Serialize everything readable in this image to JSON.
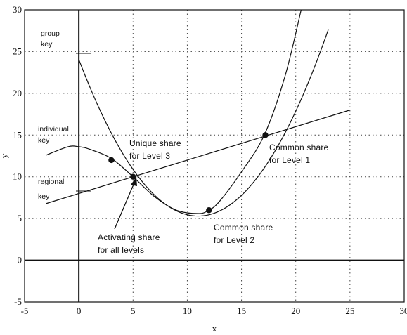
{
  "chart_data": {
    "type": "line",
    "title": "",
    "xlabel": "x",
    "ylabel": "y",
    "xlim": [
      -5,
      30
    ],
    "ylim": [
      -5,
      30
    ],
    "xticks": [
      -5,
      0,
      5,
      10,
      15,
      20,
      25,
      30
    ],
    "yticks": [
      -5,
      0,
      5,
      10,
      15,
      20,
      25,
      30
    ],
    "grid": true,
    "series": [
      {
        "kind": "line",
        "slope": 0.4,
        "intercept": 8
      },
      {
        "kind": "parabola",
        "a": 0.155,
        "h": 11,
        "k": 5.3
      },
      {
        "kind": "cubic",
        "x": [
          -3,
          -1,
          0,
          1,
          3,
          5,
          7,
          9,
          11,
          12,
          13,
          15,
          17.1,
          19,
          20.5
        ],
        "y": [
          12.6,
          13.6,
          13.6,
          13.3,
          12.2,
          10,
          7.6,
          6.0,
          5.6,
          6.0,
          7.1,
          10.6,
          15.0,
          22.0,
          30
        ]
      }
    ],
    "points": [
      {
        "x": 3,
        "y": 12
      },
      {
        "x": 5,
        "y": 10
      },
      {
        "x": 12,
        "y": 6
      },
      {
        "x": 17.2,
        "y": 15
      }
    ],
    "annotations": {
      "group_key": [
        "group",
        "key"
      ],
      "individual_key": [
        "individual",
        "key"
      ],
      "regional_key": [
        "regional",
        "key"
      ],
      "unique_share": [
        "Unique share",
        "for Level 3"
      ],
      "common_share_1": [
        "Common share",
        "for Level 1"
      ],
      "common_share_2": [
        "Common share",
        "for Level 2"
      ],
      "activating_share": [
        "Activating share",
        "for all levels"
      ]
    }
  }
}
